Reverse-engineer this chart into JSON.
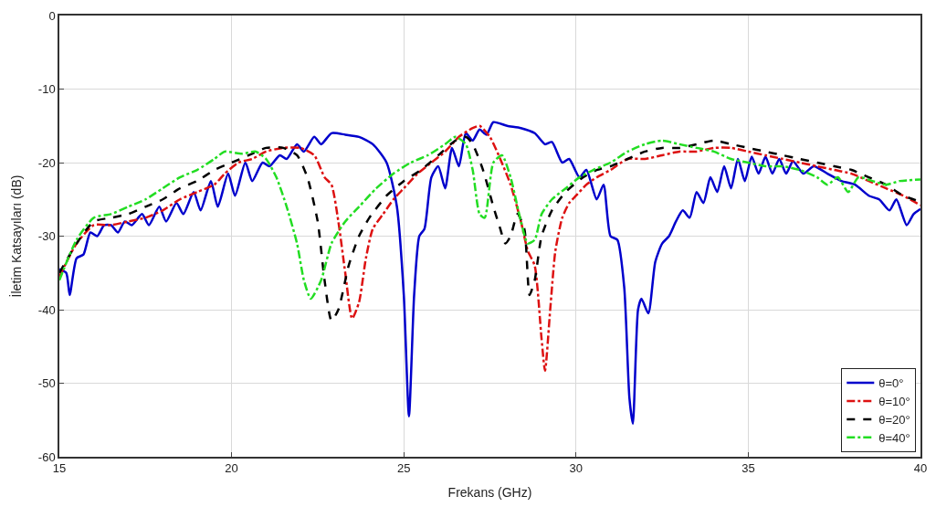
{
  "chart_data": {
    "type": "line",
    "xlabel": "Frekans (GHz)",
    "ylabel": "İletim Katsayıları (dB)",
    "xlim": [
      15,
      40
    ],
    "xticks": [
      15,
      20,
      25,
      30,
      35,
      40
    ],
    "ylim": [
      -60,
      0
    ],
    "yticks": [
      -60,
      -50,
      -40,
      -30,
      -20,
      -10,
      0
    ],
    "grid": true,
    "legend": "bottom right",
    "series": [
      {
        "name": "θ=0°",
        "color": "#0000cc",
        "line_style": "solid",
        "x": [
          15.0,
          15.2,
          15.3,
          15.5,
          15.7,
          15.9,
          16.1,
          16.3,
          16.5,
          16.7,
          16.9,
          17.1,
          17.4,
          17.6,
          17.9,
          18.1,
          18.4,
          18.6,
          18.9,
          19.1,
          19.4,
          19.6,
          19.9,
          20.1,
          20.4,
          20.6,
          20.9,
          21.1,
          21.4,
          21.6,
          21.9,
          22.1,
          22.4,
          22.6,
          22.9,
          23.3,
          23.7,
          24.1,
          24.5,
          24.8,
          25.0,
          25.15,
          25.3,
          25.45,
          25.6,
          25.8,
          26.0,
          26.2,
          26.4,
          26.6,
          26.8,
          27.0,
          27.2,
          27.4,
          27.6,
          28.0,
          28.4,
          28.8,
          29.1,
          29.3,
          29.6,
          29.8,
          30.1,
          30.3,
          30.6,
          30.8,
          31.0,
          31.2,
          31.4,
          31.55,
          31.65,
          31.8,
          31.9,
          32.1,
          32.3,
          32.5,
          32.7,
          32.9,
          33.1,
          33.3,
          33.5,
          33.7,
          33.9,
          34.1,
          34.3,
          34.5,
          34.7,
          34.9,
          35.1,
          35.3,
          35.5,
          35.7,
          35.9,
          36.1,
          36.3,
          36.6,
          36.9,
          37.3,
          37.7,
          38.1,
          38.5,
          38.8,
          39.1,
          39.3,
          39.6,
          39.8,
          40.0
        ],
        "values": [
          -34.5,
          -35,
          -38,
          -33,
          -32.5,
          -29.5,
          -30,
          -28.5,
          -28.5,
          -29.5,
          -28,
          -28.5,
          -27,
          -28.5,
          -26,
          -28,
          -25.5,
          -27,
          -24,
          -26.5,
          -22.5,
          -26,
          -21.5,
          -24.5,
          -20,
          -22.5,
          -20,
          -20.5,
          -19,
          -19.5,
          -17.5,
          -18.5,
          -16.5,
          -17.5,
          -16,
          -16.2,
          -16.5,
          -17.5,
          -20,
          -26,
          -38,
          -54.5,
          -38,
          -30,
          -29,
          -22,
          -20.5,
          -23.5,
          -18,
          -20.5,
          -16,
          -17,
          -15.5,
          -16.2,
          -14.5,
          -15,
          -15.3,
          -16,
          -17.5,
          -17.2,
          -20,
          -19.5,
          -22,
          -21,
          -25,
          -23,
          -30,
          -30.5,
          -37,
          -52,
          -55.5,
          -40,
          -38.5,
          -40.5,
          -33.5,
          -31,
          -30,
          -28,
          -26.5,
          -27.5,
          -24,
          -25.5,
          -22,
          -24,
          -20.5,
          -23.5,
          -19.5,
          -22.5,
          -19.2,
          -21.5,
          -19.2,
          -21.5,
          -19.5,
          -21.5,
          -19.8,
          -21.5,
          -20.5,
          -21.5,
          -22.5,
          -23,
          -24.5,
          -25,
          -26.5,
          -25,
          -28.5,
          -27,
          -26.3
        ]
      },
      {
        "name": "θ=10°",
        "color": "#dd1111",
        "line_style": "dashdot",
        "x": [
          15,
          15.5,
          16,
          16.5,
          17,
          17.5,
          18,
          18.5,
          19,
          19.5,
          19.8,
          20.2,
          20.6,
          21,
          21.5,
          22,
          22.4,
          22.7,
          22.9,
          23.1,
          23.3,
          23.5,
          23.7,
          23.9,
          24.1,
          24.4,
          24.7,
          25.0,
          25.4,
          25.8,
          26.2,
          26.6,
          27.0,
          27.2,
          27.5,
          27.8,
          28.1,
          28.4,
          28.6,
          28.8,
          29.0,
          29.1,
          29.25,
          29.4,
          29.6,
          29.8,
          30.0,
          30.3,
          30.6,
          31.0,
          31.5,
          32.0,
          32.5,
          33.0,
          33.5,
          34.0,
          34.5,
          35,
          35.5,
          36,
          36.5,
          37,
          37.5,
          38,
          38.5,
          39,
          39.5,
          40
        ],
        "values": [
          -35.5,
          -31,
          -28.5,
          -28.5,
          -28,
          -27.5,
          -26.5,
          -25,
          -24,
          -23,
          -21.5,
          -20,
          -19.5,
          -18.5,
          -18,
          -18,
          -19,
          -22,
          -23,
          -28,
          -35,
          -41.2,
          -39,
          -33,
          -29,
          -27,
          -25,
          -23.5,
          -21.5,
          -20,
          -18.5,
          -16.5,
          -15.3,
          -15,
          -16.5,
          -19.5,
          -23,
          -28,
          -32,
          -34,
          -44,
          -48.3,
          -40,
          -32,
          -27.5,
          -25.5,
          -24.5,
          -23,
          -22,
          -21,
          -19.5,
          -19.5,
          -19,
          -18.5,
          -18.5,
          -18,
          -18,
          -18.5,
          -19,
          -19.5,
          -20,
          -20.5,
          -21,
          -21.5,
          -22.5,
          -23.5,
          -24.5,
          -25.8
        ]
      },
      {
        "name": "θ=20°",
        "color": "#000000",
        "line_style": "dashed",
        "x": [
          15,
          15.5,
          16,
          16.5,
          17,
          17.5,
          18,
          18.5,
          19,
          19.5,
          20,
          20.5,
          21,
          21.5,
          21.9,
          22.2,
          22.5,
          22.7,
          22.9,
          23.1,
          23.4,
          23.7,
          24,
          24.5,
          25,
          25.5,
          26,
          26.5,
          26.8,
          27.0,
          27.3,
          27.6,
          27.8,
          27.95,
          28.1,
          28.3,
          28.5,
          28.65,
          28.8,
          29.0,
          29.3,
          29.7,
          30.2,
          30.6,
          31,
          31.5,
          32,
          32.5,
          33,
          33.5,
          34,
          34.5,
          35,
          35.5,
          36,
          36.5,
          37,
          37.5,
          38,
          38.5,
          39,
          39.5,
          40
        ],
        "values": [
          -35,
          -31,
          -28,
          -27.5,
          -27,
          -26,
          -25,
          -23.5,
          -22.5,
          -21,
          -20,
          -19,
          -18,
          -18,
          -19,
          -22,
          -28,
          -36,
          -41.5,
          -40,
          -34,
          -30,
          -27.5,
          -24.5,
          -22.5,
          -21,
          -19,
          -17,
          -16.5,
          -17.5,
          -21,
          -26,
          -29,
          -31,
          -30,
          -27,
          -29,
          -38,
          -36,
          -30,
          -26.5,
          -24,
          -22,
          -21,
          -20.5,
          -19.5,
          -18.5,
          -18,
          -18,
          -17.5,
          -17,
          -17.5,
          -18,
          -18.5,
          -19,
          -19.5,
          -20,
          -20.5,
          -21,
          -22,
          -23,
          -24.5,
          -25.3
        ]
      },
      {
        "name": "θ=40°",
        "color": "#22dd22",
        "line_style": "dashdot",
        "x": [
          15,
          15.5,
          16,
          16.5,
          17,
          17.5,
          18,
          18.5,
          19,
          19.5,
          19.8,
          20.3,
          20.7,
          21,
          21.3,
          21.6,
          21.9,
          22.1,
          22.3,
          22.6,
          22.9,
          23.3,
          23.7,
          24.2,
          24.7,
          25.2,
          25.7,
          26.2,
          26.5,
          26.8,
          27.0,
          27.2,
          27.35,
          27.6,
          27.85,
          28.1,
          28.4,
          28.6,
          28.8,
          29.0,
          29.3,
          29.7,
          30.1,
          30.5,
          31.0,
          31.5,
          32,
          32.5,
          33,
          33.5,
          34,
          34.5,
          35,
          35.5,
          36,
          36.5,
          37,
          37.3,
          37.6,
          37.9,
          38.2,
          38.6,
          39,
          39.4,
          40
        ],
        "values": [
          -36,
          -30.5,
          -27.5,
          -27,
          -26,
          -25,
          -23.5,
          -22,
          -21,
          -19.5,
          -18.5,
          -18.8,
          -18.5,
          -19.5,
          -22,
          -26,
          -31,
          -36,
          -38.5,
          -36,
          -31,
          -28,
          -26,
          -23.5,
          -21.5,
          -20,
          -19,
          -17.5,
          -16.5,
          -17.5,
          -21,
          -27,
          -27.5,
          -20,
          -19,
          -22,
          -28,
          -31,
          -30.5,
          -27,
          -25,
          -23.5,
          -22,
          -21,
          -20,
          -18.5,
          -17.5,
          -17,
          -17.5,
          -18,
          -18.5,
          -19.5,
          -20,
          -20.5,
          -20.5,
          -21,
          -22,
          -23,
          -22,
          -24,
          -22,
          -22.5,
          -23,
          -22.5,
          -22.3
        ]
      }
    ]
  }
}
